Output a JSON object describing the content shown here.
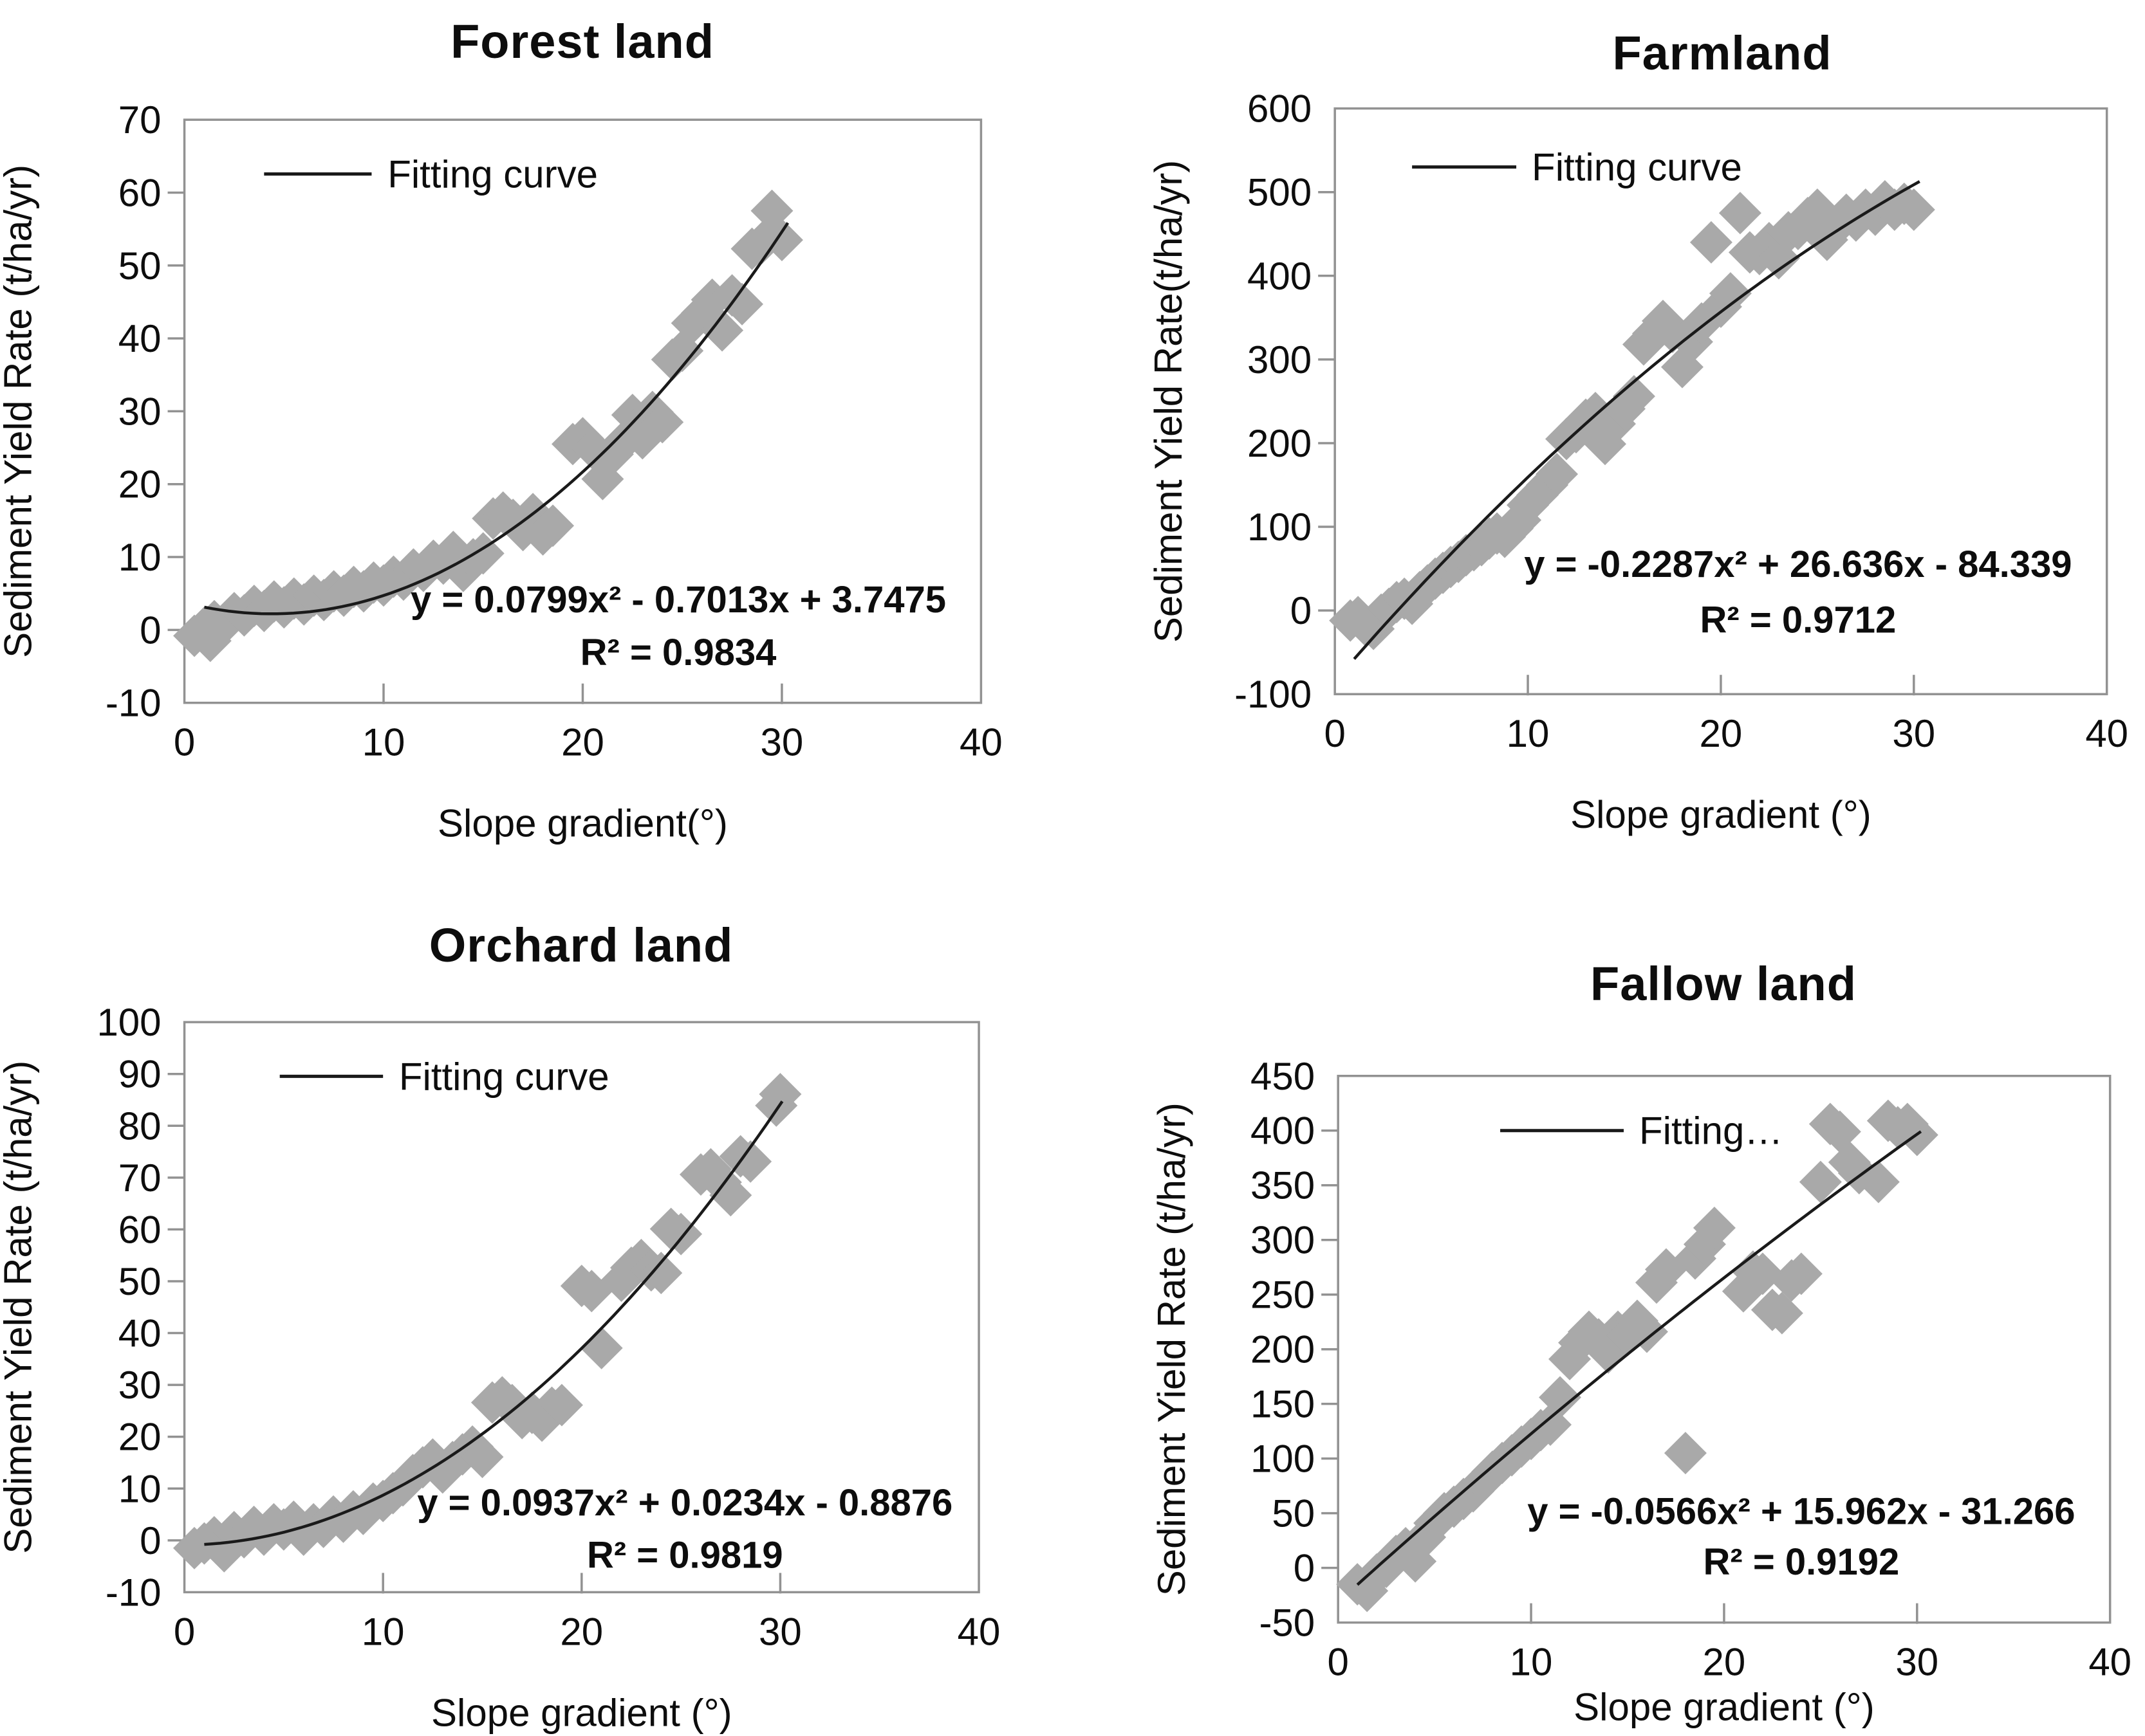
{
  "figure": {
    "marker_color": "#a9a9a9",
    "curve_color": "#1a1a1a",
    "frame_color": "#929292",
    "text_color": "#0d0d0d"
  },
  "chart_data": [
    {
      "type": "scatter",
      "title": "Forest land",
      "xlabel": "Slope gradient(°)",
      "ylabel": "Sediment Yield Rate (t/ha/yr)",
      "legend": "Fitting curve",
      "equation": "y = 0.0799x² - 0.7013x + 3.7475",
      "r2": "R² = 0.9834",
      "xlim": [
        0,
        40
      ],
      "ylim": [
        -10,
        70
      ],
      "x_ticks": [
        0,
        10,
        20,
        30,
        40
      ],
      "y_ticks": [
        -10,
        0,
        10,
        20,
        30,
        40,
        50,
        60,
        70
      ],
      "fit": {
        "a": 0.0799,
        "b": -0.7013,
        "c": 3.7475
      },
      "curve_domain": [
        1,
        30.3
      ],
      "points": [
        [
          0.5,
          -0.8
        ],
        [
          1,
          0.3
        ],
        [
          1.3,
          -1.5
        ],
        [
          1.5,
          1.2
        ],
        [
          2,
          0.8
        ],
        [
          2.5,
          2.3
        ],
        [
          3,
          2.0
        ],
        [
          3.5,
          3.3
        ],
        [
          4,
          2.6
        ],
        [
          4.5,
          3.9
        ],
        [
          5,
          3.1
        ],
        [
          5.5,
          4.3
        ],
        [
          6,
          3.5
        ],
        [
          6.5,
          4.7
        ],
        [
          7,
          4.1
        ],
        [
          7.5,
          5.3
        ],
        [
          8,
          4.7
        ],
        [
          8.5,
          5.9
        ],
        [
          9,
          5.3
        ],
        [
          9.5,
          6.5
        ],
        [
          10,
          6.1
        ],
        [
          10.5,
          7.3
        ],
        [
          11,
          6.9
        ],
        [
          11.5,
          8.3
        ],
        [
          12,
          8.1
        ],
        [
          12.5,
          9.5
        ],
        [
          13,
          9.1
        ],
        [
          13.5,
          10.7
        ],
        [
          14,
          8.1
        ],
        [
          14.5,
          9.7
        ],
        [
          15,
          10.5
        ],
        [
          15.5,
          15.3
        ],
        [
          16,
          16.1
        ],
        [
          16.5,
          15.1
        ],
        [
          17,
          13.7
        ],
        [
          17.5,
          15.9
        ],
        [
          18,
          13.1
        ],
        [
          18.5,
          14.3
        ],
        [
          19.5,
          25.5
        ],
        [
          20,
          26.3
        ],
        [
          20.5,
          24.9
        ],
        [
          21,
          20.7
        ],
        [
          21.5,
          24.1
        ],
        [
          22,
          25.7
        ],
        [
          22.5,
          29.5
        ],
        [
          23,
          26.3
        ],
        [
          23.5,
          29.9
        ],
        [
          24,
          28.5
        ],
        [
          24.5,
          37.1
        ],
        [
          25,
          38.3
        ],
        [
          25.5,
          42.1
        ],
        [
          26,
          43.5
        ],
        [
          26.5,
          45.3
        ],
        [
          27,
          41.1
        ],
        [
          27.5,
          45.9
        ],
        [
          28,
          44.7
        ],
        [
          28.5,
          52.3
        ],
        [
          29,
          53.1
        ],
        [
          29.5,
          57.5
        ],
        [
          30,
          53.5
        ]
      ]
    },
    {
      "type": "scatter",
      "title": "Farmland",
      "xlabel": "Slope gradient (°)",
      "ylabel": "Sediment Yield Rate(t/ha/yr)",
      "legend": "Fitting curve",
      "equation": "y = -0.2287x² + 26.636x - 84.339",
      "r2": "R² = 0.9712",
      "xlim": [
        0,
        40
      ],
      "ylim": [
        -100,
        600
      ],
      "x_ticks": [
        0,
        10,
        20,
        30,
        40
      ],
      "y_ticks": [
        -100,
        0,
        100,
        200,
        300,
        400,
        500,
        600
      ],
      "fit": {
        "a": -0.2287,
        "b": 26.636,
        "c": -84.339
      },
      "curve_domain": [
        1,
        30.3
      ],
      "points": [
        [
          0.8,
          -12
        ],
        [
          1.2,
          -8
        ],
        [
          1.6,
          -18
        ],
        [
          2,
          -22
        ],
        [
          2.4,
          -5
        ],
        [
          2.8,
          2
        ],
        [
          3.2,
          10
        ],
        [
          3.6,
          14
        ],
        [
          4,
          8
        ],
        [
          4.4,
          22
        ],
        [
          4.8,
          30
        ],
        [
          5.2,
          38
        ],
        [
          5.6,
          45
        ],
        [
          6,
          52
        ],
        [
          6.4,
          58
        ],
        [
          6.8,
          66
        ],
        [
          7.2,
          72
        ],
        [
          7.6,
          78
        ],
        [
          8,
          86
        ],
        [
          8.4,
          92
        ],
        [
          8.8,
          88
        ],
        [
          9.2,
          98
        ],
        [
          9.6,
          108
        ],
        [
          10,
          126
        ],
        [
          10.5,
          138
        ],
        [
          11,
          150
        ],
        [
          11.5,
          163
        ],
        [
          12,
          205
        ],
        [
          12.5,
          213
        ],
        [
          13,
          228
        ],
        [
          13.5,
          236
        ],
        [
          14,
          199
        ],
        [
          14.5,
          223
        ],
        [
          15,
          241
        ],
        [
          15.5,
          256
        ],
        [
          16,
          318
        ],
        [
          16.5,
          331
        ],
        [
          17,
          346
        ],
        [
          17.5,
          333
        ],
        [
          18,
          291
        ],
        [
          18.5,
          321
        ],
        [
          19,
          343
        ],
        [
          19.5,
          440
        ],
        [
          20,
          363
        ],
        [
          20.5,
          379
        ],
        [
          21,
          475
        ],
        [
          21.5,
          428
        ],
        [
          22,
          426
        ],
        [
          22.5,
          439
        ],
        [
          23,
          421
        ],
        [
          23.5,
          452
        ],
        [
          24,
          456
        ],
        [
          24.5,
          469
        ],
        [
          25,
          479
        ],
        [
          25.5,
          443
        ],
        [
          26,
          459
        ],
        [
          26.5,
          473
        ],
        [
          27,
          466
        ],
        [
          27.5,
          479
        ],
        [
          28,
          473
        ],
        [
          28.5,
          489
        ],
        [
          29,
          479
        ],
        [
          29.5,
          486
        ],
        [
          30,
          479
        ]
      ]
    },
    {
      "type": "scatter",
      "title": "Orchard land",
      "xlabel": "Slope gradient (°)",
      "ylabel": "Sediment Yield Rate (t/ha/yr)",
      "legend": "Fitting curve",
      "equation": "y = 0.0937x² + 0.0234x - 0.8876",
      "r2": "R² = 0.9819",
      "xlim": [
        0,
        40
      ],
      "ylim": [
        -10,
        100
      ],
      "x_ticks": [
        0,
        10,
        20,
        30,
        40
      ],
      "y_ticks": [
        -10,
        0,
        10,
        20,
        30,
        40,
        50,
        60,
        70,
        80,
        90,
        100
      ],
      "fit": {
        "a": 0.0937,
        "b": 0.0234,
        "c": -0.8876
      },
      "curve_domain": [
        1,
        30.1
      ],
      "points": [
        [
          0.5,
          -1.5
        ],
        [
          1,
          -0.6
        ],
        [
          1.5,
          0.6
        ],
        [
          2,
          -2.1
        ],
        [
          2.5,
          1.6
        ],
        [
          3,
          0.6
        ],
        [
          3.5,
          2.6
        ],
        [
          4,
          1.1
        ],
        [
          4.5,
          3.1
        ],
        [
          5,
          2.1
        ],
        [
          5.5,
          3.6
        ],
        [
          6,
          1.1
        ],
        [
          6.5,
          3.1
        ],
        [
          7,
          2.6
        ],
        [
          7.5,
          4.6
        ],
        [
          8,
          3.6
        ],
        [
          8.5,
          5.6
        ],
        [
          9,
          5.1
        ],
        [
          9.5,
          7.1
        ],
        [
          10,
          7.6
        ],
        [
          10.5,
          9.1
        ],
        [
          11,
          10.6
        ],
        [
          11.5,
          12.6
        ],
        [
          12,
          14.1
        ],
        [
          12.5,
          15.6
        ],
        [
          13,
          13.1
        ],
        [
          13.5,
          15.1
        ],
        [
          14,
          16.6
        ],
        [
          14.5,
          18.1
        ],
        [
          15,
          16.1
        ],
        [
          15.5,
          26.6
        ],
        [
          16,
          27.6
        ],
        [
          16.5,
          26.1
        ],
        [
          17,
          23.6
        ],
        [
          17.5,
          24.6
        ],
        [
          18,
          23.1
        ],
        [
          18.5,
          25.6
        ],
        [
          19,
          26.1
        ],
        [
          20,
          49.1
        ],
        [
          20.5,
          48.1
        ],
        [
          21,
          37.1
        ],
        [
          22,
          50.1
        ],
        [
          22.5,
          52.6
        ],
        [
          23,
          54.1
        ],
        [
          23.5,
          52.1
        ],
        [
          24,
          51.6
        ],
        [
          24.5,
          60.1
        ],
        [
          25,
          59.1
        ],
        [
          26,
          70.6
        ],
        [
          26.5,
          71.6
        ],
        [
          27,
          69.1
        ],
        [
          27.5,
          66.6
        ],
        [
          28,
          74.1
        ],
        [
          28.5,
          73.1
        ],
        [
          29.8,
          83.9
        ],
        [
          30,
          86.1
        ]
      ]
    },
    {
      "type": "scatter",
      "title": "Fallow land",
      "xlabel": "Slope gradient (°)",
      "ylabel": "Sediment Yield Rate (t/ha/yr)",
      "legend": "Fitting…",
      "equation": "y = -0.0566x² + 15.962x - 31.266",
      "r2": "R² = 0.9192",
      "xlim": [
        0,
        40
      ],
      "ylim": [
        -50,
        450
      ],
      "x_ticks": [
        0,
        10,
        20,
        30,
        40
      ],
      "y_ticks": [
        -50,
        0,
        50,
        100,
        150,
        200,
        250,
        300,
        350,
        400,
        450
      ],
      "fit": {
        "a": -0.0566,
        "b": 15.962,
        "c": -31.266
      },
      "curve_domain": [
        1,
        30.2
      ],
      "points": [
        [
          1,
          -15
        ],
        [
          1.5,
          -21
        ],
        [
          2,
          -6
        ],
        [
          2.5,
          1
        ],
        [
          3,
          11
        ],
        [
          3.5,
          18
        ],
        [
          4,
          6
        ],
        [
          4.5,
          28
        ],
        [
          5,
          41
        ],
        [
          5.5,
          50
        ],
        [
          6,
          56
        ],
        [
          6.5,
          63
        ],
        [
          7,
          70
        ],
        [
          7.5,
          79
        ],
        [
          8,
          88
        ],
        [
          8.5,
          96
        ],
        [
          9,
          103
        ],
        [
          9.5,
          111
        ],
        [
          10,
          118
        ],
        [
          10.5,
          126
        ],
        [
          11,
          131
        ],
        [
          11.5,
          156
        ],
        [
          12,
          191
        ],
        [
          12.5,
          206
        ],
        [
          13,
          216
        ],
        [
          13.5,
          209
        ],
        [
          14,
          197
        ],
        [
          14.5,
          216
        ],
        [
          15,
          213
        ],
        [
          15.5,
          226
        ],
        [
          16,
          216
        ],
        [
          16.5,
          261
        ],
        [
          17,
          273
        ],
        [
          18,
          105
        ],
        [
          18.5,
          283
        ],
        [
          19,
          296
        ],
        [
          19.5,
          311
        ],
        [
          21,
          253
        ],
        [
          21.5,
          271
        ],
        [
          22,
          269
        ],
        [
          22.5,
          236
        ],
        [
          23,
          233
        ],
        [
          23.5,
          263
        ],
        [
          24,
          269
        ],
        [
          25,
          353
        ],
        [
          25.5,
          406
        ],
        [
          26,
          399
        ],
        [
          26.5,
          371
        ],
        [
          27,
          361
        ],
        [
          28,
          353
        ],
        [
          28.5,
          409
        ],
        [
          29,
          403
        ],
        [
          29.5,
          406
        ],
        [
          30,
          396
        ]
      ]
    }
  ]
}
